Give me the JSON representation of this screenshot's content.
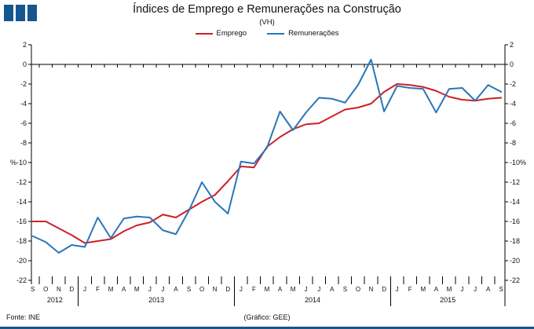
{
  "header": {
    "title": "Índices de Emprego  e Remunerações na Construção",
    "subtitle": "(VH)"
  },
  "logo": {
    "color": "#15568f",
    "squares": 3
  },
  "bottom_bar_color": "#15568f",
  "legend": [
    {
      "label": "Emprego",
      "color": "#cb2127"
    },
    {
      "label": "Remunerações",
      "color": "#2a76b8"
    }
  ],
  "footer": {
    "source": "Fonte: INE",
    "credit": "(Gráfico: GEE)"
  },
  "chart_data": {
    "type": "line",
    "title": "Índices de Emprego e Remunerações na Construção",
    "subtitle": "(VH)",
    "unit": "%",
    "ylim": [
      -22,
      2
    ],
    "ytick_step": 2,
    "ylabel_left_special": "%-10",
    "ylabel_right_special": "-10%",
    "grid": "zero-line-only",
    "legend_position": "top-center",
    "categories": [
      "S",
      "O",
      "N",
      "D",
      "J",
      "F",
      "M",
      "A",
      "M",
      "J",
      "J",
      "A",
      "S",
      "O",
      "N",
      "D",
      "J",
      "F",
      "M",
      "A",
      "M",
      "J",
      "J",
      "A",
      "S",
      "O",
      "N",
      "D",
      "J",
      "F",
      "M",
      "A",
      "M",
      "J",
      "J",
      "A",
      "S"
    ],
    "years": [
      {
        "label": "2012",
        "months": 4
      },
      {
        "label": "2013",
        "months": 12
      },
      {
        "label": "2014",
        "months": 12
      },
      {
        "label": "2015",
        "months": 9
      }
    ],
    "series": [
      {
        "name": "Emprego",
        "color": "#cb2127",
        "values": [
          -16.0,
          -16.0,
          -16.7,
          -17.4,
          -18.2,
          -18.0,
          -17.8,
          -17.0,
          -16.4,
          -16.1,
          -15.3,
          -15.6,
          -14.8,
          -14.0,
          -13.3,
          -11.9,
          -10.4,
          -10.5,
          -8.4,
          -7.4,
          -6.6,
          -6.1,
          -6.0,
          -5.3,
          -4.6,
          -4.4,
          -4.0,
          -2.8,
          -2.0,
          -2.1,
          -2.3,
          -2.7,
          -3.3,
          -3.6,
          -3.7,
          -3.5,
          -3.4
        ]
      },
      {
        "name": "Remunerações",
        "color": "#2a76b8",
        "values": [
          -17.5,
          -18.1,
          -19.2,
          -18.4,
          -18.6,
          -15.6,
          -17.7,
          -15.7,
          -15.5,
          -15.6,
          -16.9,
          -17.3,
          -14.9,
          -12.0,
          -14.0,
          -15.2,
          -9.9,
          -10.1,
          -8.5,
          -4.8,
          -6.7,
          -4.9,
          -3.4,
          -3.5,
          -3.9,
          -2.1,
          0.5,
          -4.8,
          -2.2,
          -2.4,
          -2.5,
          -4.9,
          -2.5,
          -2.4,
          -3.7,
          -2.1,
          -2.8
        ]
      }
    ]
  }
}
